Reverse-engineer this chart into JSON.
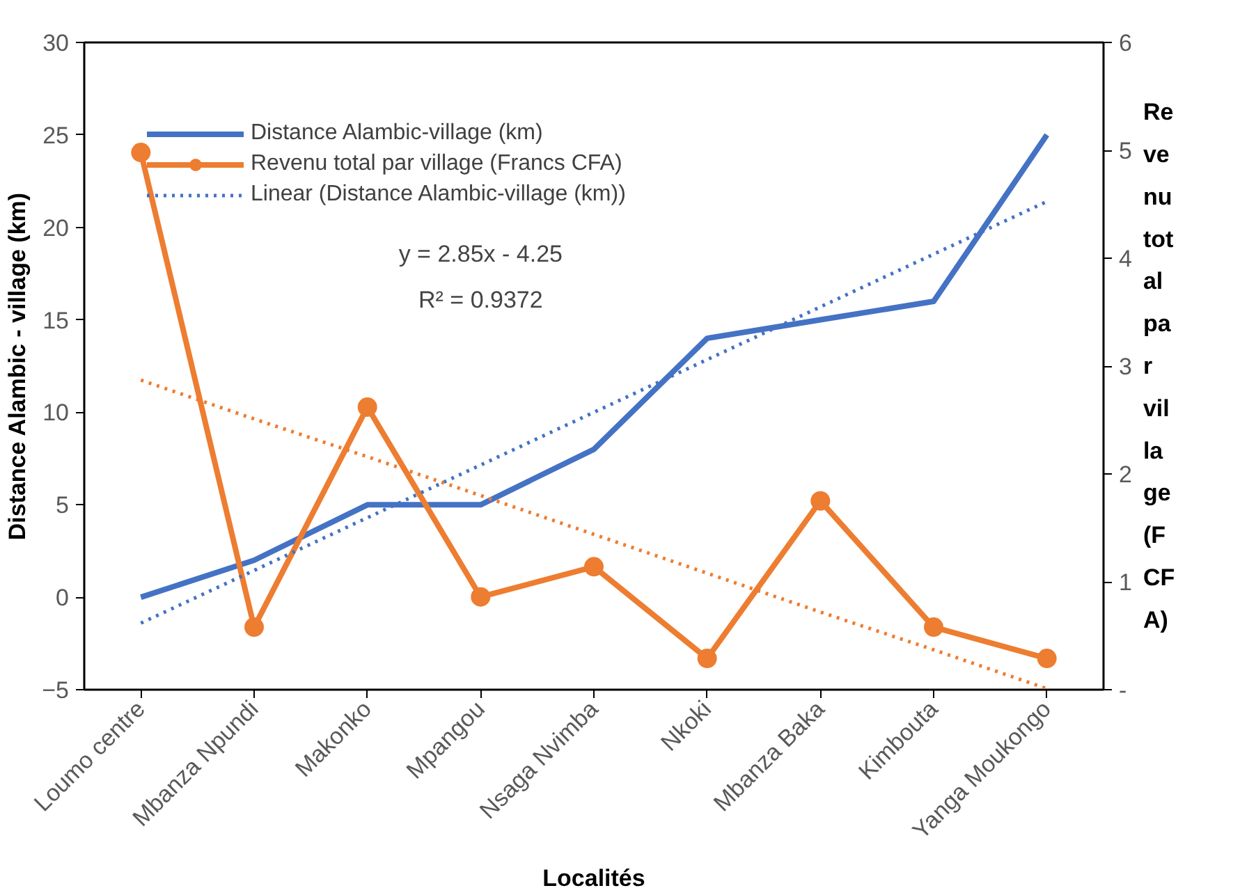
{
  "chart_data": {
    "type": "line",
    "xlabel": "Localités",
    "ylabel": "Distance Alambic - village (km)",
    "y2label": "Revenu total par village (FCFA)",
    "categories": [
      "Loumo centre",
      "Mbanza Npundi",
      "Makonko",
      "Mpangou",
      "Nsaga Nvimba",
      "Nkoki",
      "Mbanza Baka",
      "Kimbouta",
      "Yanga Moukongo"
    ],
    "series": [
      {
        "name": "Distance Alambic-village (km)",
        "color": "#4472c4",
        "values": [
          0,
          2,
          5,
          5,
          8,
          14,
          15,
          16,
          25
        ],
        "marker": "none",
        "line_style": "solid"
      },
      {
        "name": "Revenu total par village (Francs CFA)",
        "color": "#ed7d31",
        "values": [
          4.98,
          0.58,
          2.62,
          0.86,
          1.14,
          0.29,
          1.75,
          0.58,
          0.29
        ],
        "axis": "y2",
        "marker": "circle",
        "line_style": "solid"
      },
      {
        "name": "Linear (Distance Alambic-village (km))",
        "color": "#4472c4",
        "values": [
          -1.4,
          1.45,
          4.3,
          7.15,
          10,
          12.85,
          15.7,
          18.55,
          21.4
        ],
        "marker": "none",
        "line_style": "dotted"
      },
      {
        "color": "#ed7d31",
        "values": [
          2.87,
          2.51,
          2.16,
          1.8,
          1.44,
          1.08,
          0.72,
          0.37,
          0.01
        ],
        "axis": "y2",
        "marker": "none",
        "line_style": "dotted"
      }
    ],
    "ylim": [
      -5,
      30
    ],
    "yticks": [
      -5,
      0,
      5,
      10,
      15,
      20,
      25,
      30
    ],
    "y2lim": [
      0,
      6
    ],
    "y2ticks": [
      {
        "value": 0,
        "label": "-"
      },
      1,
      2,
      3,
      4,
      5,
      6
    ],
    "annotations": [
      "y = 2.85x - 4.25",
      "R² = 0.9372"
    ],
    "grid": false,
    "legend": "top"
  }
}
